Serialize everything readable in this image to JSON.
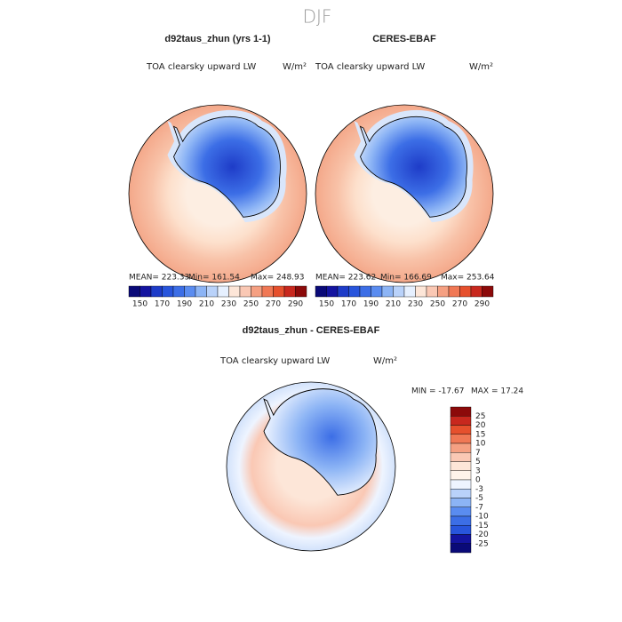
{
  "title": "DJF",
  "panels": [
    {
      "title": "d92taus_zhun (yrs 1-1)",
      "variable": "TOA clearsky upward LW",
      "units": "W/m²",
      "stats": [
        "MEAN= 223.33",
        "Min= 161.54",
        "Max= 248.93"
      ],
      "colorbar": {
        "labels": [
          150,
          170,
          190,
          210,
          230,
          250,
          270,
          290
        ],
        "colors": [
          "#0a0a78",
          "#1414a0",
          "#1e3cc8",
          "#2855dc",
          "#3c6ee6",
          "#5a8cf0",
          "#8cb4f5",
          "#b9d2fa",
          "#e6f0ff",
          "#fde6d8",
          "#fac8b4",
          "#f5a082",
          "#f07855",
          "#e6502d",
          "#c8281e",
          "#8c0a0a"
        ]
      }
    },
    {
      "title": "CERES-EBAF",
      "variable": "TOA clearsky upward LW",
      "units": "W/m²",
      "stats": [
        "MEAN= 223.62",
        "Min= 166.69",
        "Max= 253.64"
      ],
      "colorbar": {
        "labels": [
          150,
          170,
          190,
          210,
          230,
          250,
          270,
          290
        ],
        "colors": [
          "#0a0a78",
          "#1414a0",
          "#1e3cc8",
          "#2855dc",
          "#3c6ee6",
          "#5a8cf0",
          "#8cb4f5",
          "#b9d2fa",
          "#e6f0ff",
          "#fde6d8",
          "#fac8b4",
          "#f5a082",
          "#f07855",
          "#e6502d",
          "#c8281e",
          "#8c0a0a"
        ]
      }
    },
    {
      "title": "d92taus_zhun - CERES-EBAF",
      "variable": "TOA clearsky upward LW",
      "units": "W/m²",
      "stats": [
        "MIN = -17.67",
        "MAX = 17.24"
      ],
      "colorbar": {
        "labels": [
          25,
          20,
          15,
          10,
          7,
          5,
          3,
          0,
          -3,
          -5,
          -7,
          -10,
          -15,
          -20,
          -25
        ],
        "colors": [
          "#8c0a0a",
          "#c8281e",
          "#e6502d",
          "#f07855",
          "#f5a082",
          "#fac8b4",
          "#fde6d8",
          "#fff4ea",
          "#eef4ff",
          "#b9d2fa",
          "#8cb4f5",
          "#5a8cf0",
          "#3c6ee6",
          "#2855dc",
          "#1414a0",
          "#0a0a78"
        ]
      }
    }
  ]
}
